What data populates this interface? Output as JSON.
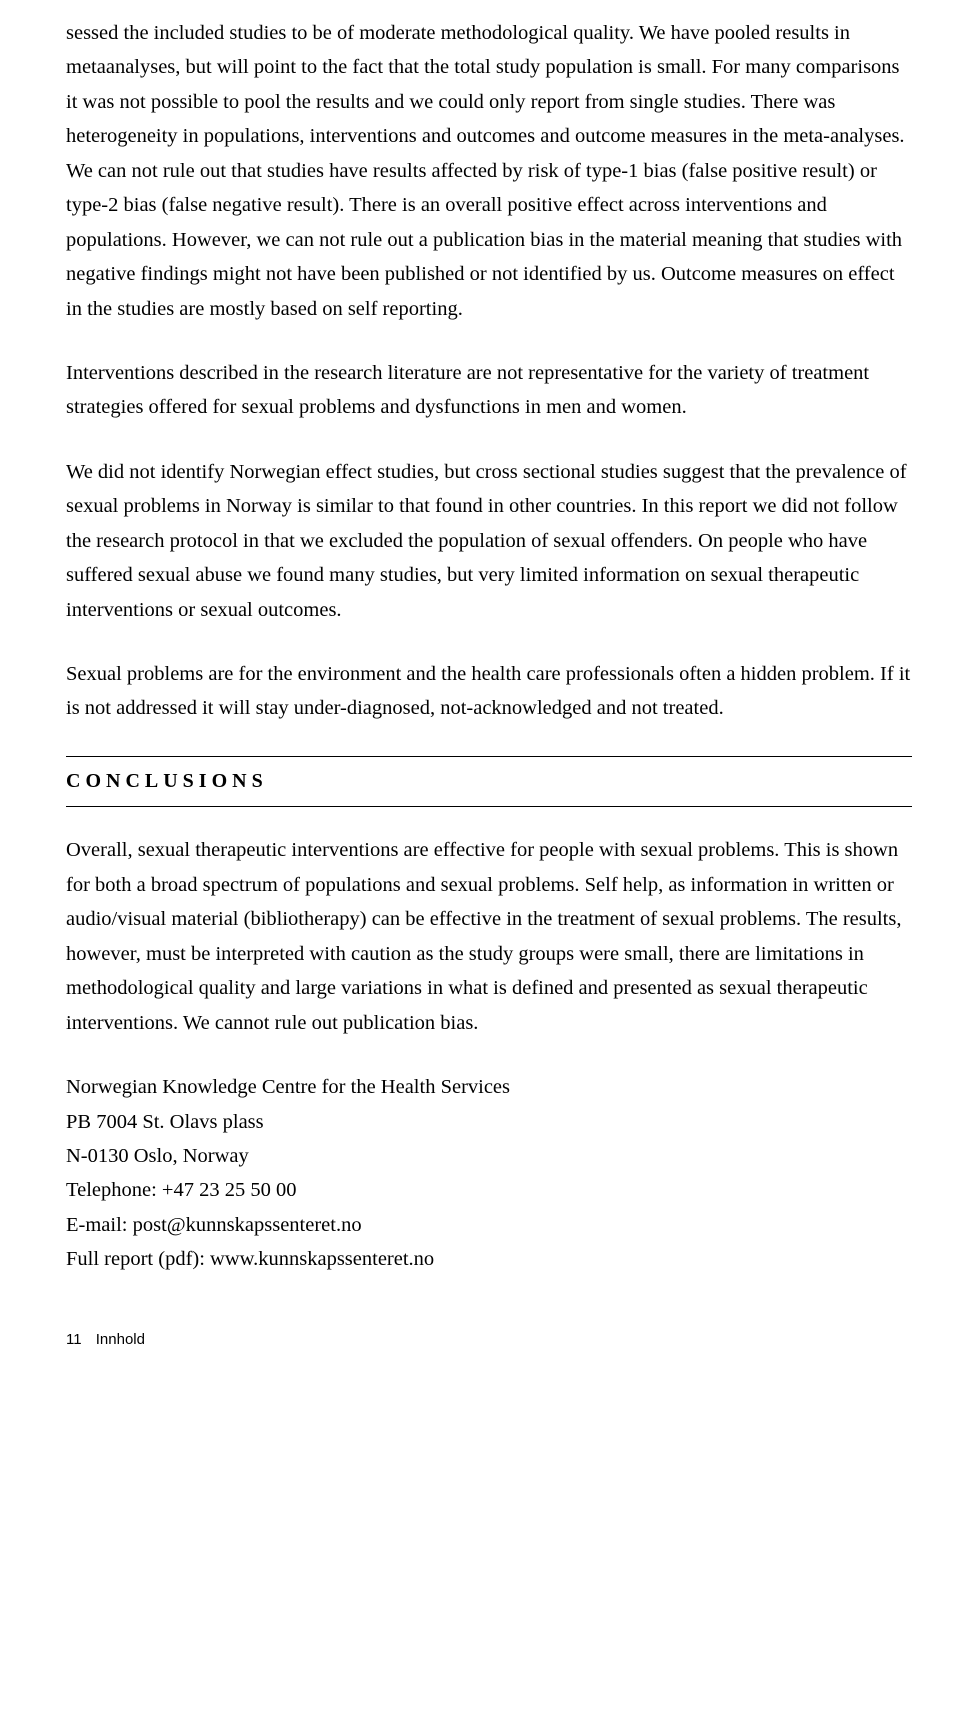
{
  "body": {
    "p1": "sessed the included studies to be of moderate methodological quality. We have pooled results in metaanalyses, but will point to the fact that the total study population is small. For many comparisons it was not possible to pool the results and we could only report from single studies. There was heterogeneity in populations, interventions and outcomes and outcome measures in the meta-analyses. We can not rule out that studies have results affected by risk of type-1 bias (false positive result) or type-2 bias (false negative result). There is an overall positive effect across interventions and populations.  However, we can not rule out a publication bias in the material meaning that studies with negative findings might not have been published or not identified by us. Outcome measures on effect in the studies are mostly based on self reporting.",
    "p2": "Interventions described in the research literature are not representative for the variety of treatment strategies offered for sexual problems and dysfunctions in men and women.",
    "p3": "We did not identify Norwegian effect studies, but cross sectional studies suggest that the prevalence of sexual problems in Norway is similar to that found in other countries.  In this report we did not follow the research protocol in that we excluded the population of sexual offenders. On people who have suffered sexual abuse we found many studies, but very limited information on sexual therapeutic interventions or sexual outcomes.",
    "p4": "Sexual problems are for the environment and the health care professionals often a hidden problem. If it is not addressed it will stay under-diagnosed, not-acknowledged and not treated."
  },
  "heading": "CONCLUSIONS",
  "conclusions": {
    "p1": "Overall, sexual therapeutic interventions are effective for people with sexual problems. This is shown for both a broad spectrum of populations and sexual problems. Self help, as information in written or audio/visual material (bibliotherapy) can be effective in the treatment of sexual problems. The results, however, must be interpreted with caution as the study groups were small, there are limitations in methodological quality and large variations in what is defined and presented as sexual therapeutic interventions. We cannot rule out publication bias."
  },
  "contact": {
    "org": "Norwegian Knowledge Centre for the Health Services",
    "addr1": "PB 7004 St. Olavs plass",
    "addr2": "N-0130 Oslo, Norway",
    "phone": "Telephone: +47 23 25 50 00",
    "email": "E-mail: post@kunnskapssenteret.no",
    "report": "Full report (pdf): www.kunnskapssenteret.no"
  },
  "footer": {
    "page": "11",
    "label": "Innhold"
  }
}
